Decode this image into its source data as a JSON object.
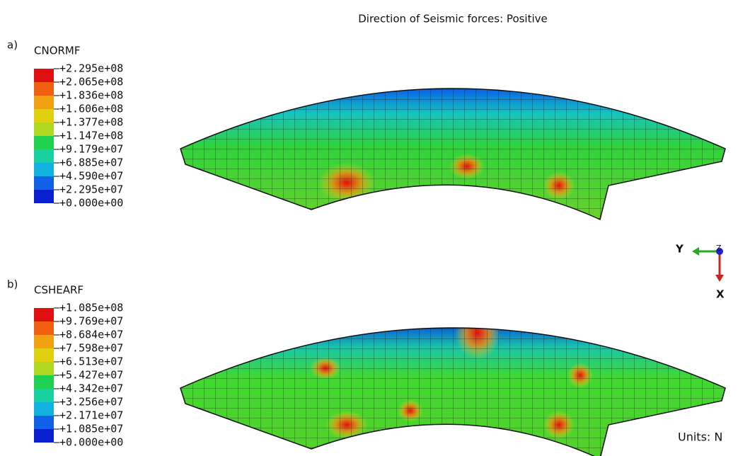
{
  "title": "Direction of Seismic forces: Positive",
  "panels": [
    {
      "letter": "a)",
      "variable": "CNORMF",
      "legend": [
        "+2.295e+08",
        "+2.065e+08",
        "+1.836e+08",
        "+1.606e+08",
        "+1.377e+08",
        "+1.147e+08",
        "+9.179e+07",
        "+6.885e+07",
        "+4.590e+07",
        "+2.295e+07",
        "+0.000e+00"
      ]
    },
    {
      "letter": "b)",
      "variable": "CSHEARF",
      "legend": [
        "+1.085e+08",
        "+9.769e+07",
        "+8.684e+07",
        "+7.598e+07",
        "+6.513e+07",
        "+5.427e+07",
        "+4.342e+07",
        "+3.256e+07",
        "+2.171e+07",
        "+1.085e+07",
        "+0.000e+00"
      ]
    }
  ],
  "triad": {
    "y": "Y",
    "z": "Z",
    "x": "X"
  },
  "units": "Units: N"
}
